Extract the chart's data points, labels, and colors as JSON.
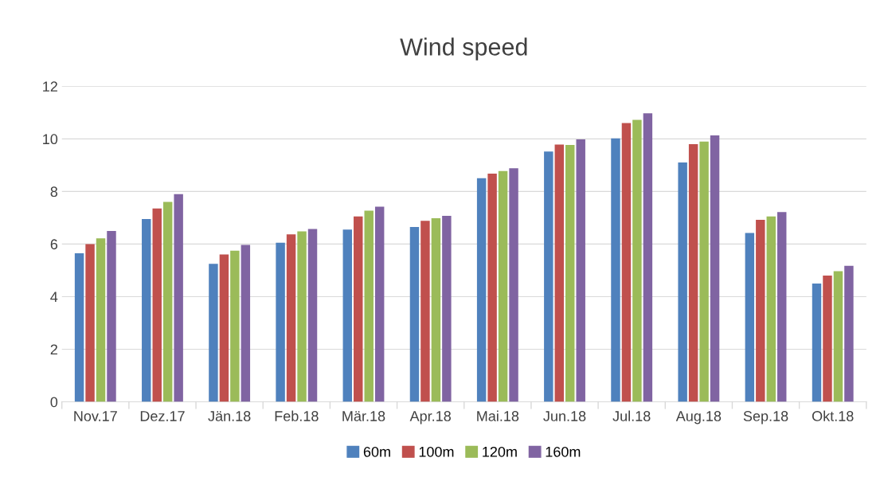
{
  "chart_data": {
    "type": "bar",
    "title": "Wind speed",
    "categories": [
      "Nov.17",
      "Dez.17",
      "Jän.18",
      "Feb.18",
      "Mär.18",
      "Apr.18",
      "Mai.18",
      "Jun.18",
      "Jul.18",
      "Aug.18",
      "Sep.18",
      "Okt.18"
    ],
    "series": [
      {
        "name": "60m",
        "color": "#4f81bd",
        "values": [
          5.65,
          6.95,
          5.25,
          6.05,
          6.55,
          6.65,
          8.5,
          9.52,
          10.02,
          9.1,
          6.42,
          4.5
        ]
      },
      {
        "name": "100m",
        "color": "#c0504d",
        "values": [
          6.0,
          7.35,
          5.6,
          6.37,
          7.05,
          6.88,
          8.68,
          9.78,
          10.6,
          9.8,
          6.92,
          4.8
        ]
      },
      {
        "name": "120m",
        "color": "#9bbb59",
        "values": [
          6.22,
          7.6,
          5.75,
          6.48,
          7.27,
          6.98,
          8.78,
          9.77,
          10.72,
          9.9,
          7.05,
          4.97
        ]
      },
      {
        "name": "160m",
        "color": "#8064a2",
        "values": [
          6.5,
          7.9,
          5.97,
          6.57,
          7.42,
          7.07,
          8.88,
          9.98,
          10.97,
          10.13,
          7.22,
          5.17
        ]
      }
    ],
    "ylim": [
      0,
      12
    ],
    "yticks": [
      0,
      2,
      4,
      6,
      8,
      10,
      12
    ],
    "grid": "y",
    "legend": "bottom"
  }
}
